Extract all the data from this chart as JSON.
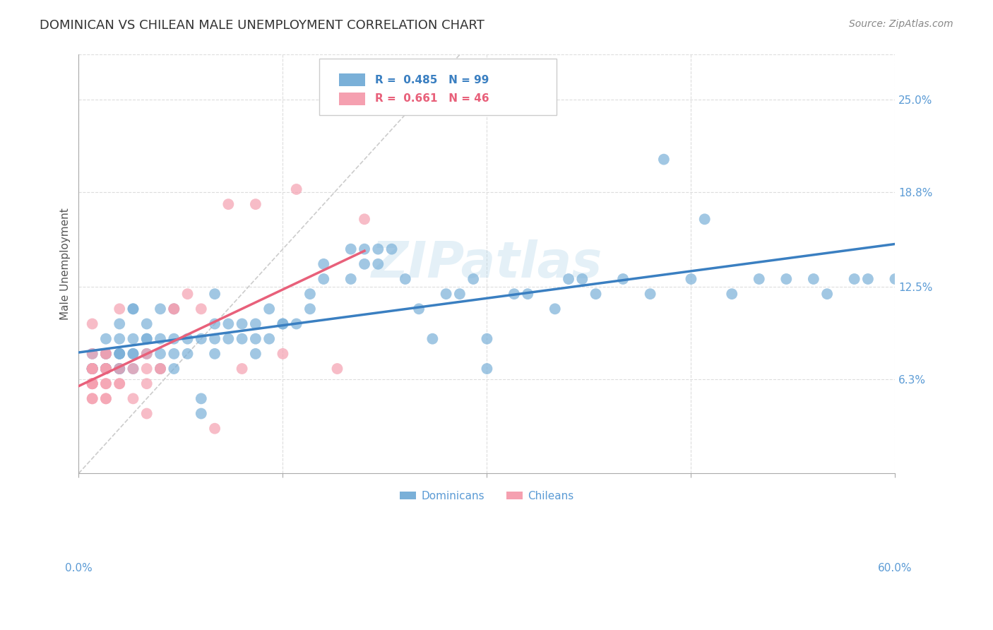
{
  "title": "DOMINICAN VS CHILEAN MALE UNEMPLOYMENT CORRELATION CHART",
  "source": "Source: ZipAtlas.com",
  "ylabel": "Male Unemployment",
  "ytick_labels": [
    "25.0%",
    "18.8%",
    "12.5%",
    "6.3%"
  ],
  "ytick_values": [
    0.25,
    0.188,
    0.125,
    0.063
  ],
  "xmin": 0.0,
  "xmax": 0.6,
  "ymin": 0.0,
  "ymax": 0.28,
  "watermark": "ZIPatlas",
  "legend_blue_r": "0.485",
  "legend_blue_n": "99",
  "legend_pink_r": "0.661",
  "legend_pink_n": "46",
  "legend_label_blue": "Dominicans",
  "legend_label_pink": "Chileans",
  "blue_color": "#7ab0d8",
  "pink_color": "#f5a0b0",
  "blue_line_color": "#3a7fc1",
  "pink_line_color": "#e8607a",
  "diagonal_color": "#cccccc",
  "title_color": "#333333",
  "tick_label_color": "#5b9bd5",
  "source_color": "#888888",
  "grid_color": "#dddddd",
  "blue_scatter_x": [
    0.01,
    0.01,
    0.01,
    0.01,
    0.01,
    0.01,
    0.02,
    0.02,
    0.02,
    0.02,
    0.02,
    0.02,
    0.02,
    0.02,
    0.03,
    0.03,
    0.03,
    0.03,
    0.03,
    0.03,
    0.03,
    0.03,
    0.04,
    0.04,
    0.04,
    0.04,
    0.04,
    0.04,
    0.05,
    0.05,
    0.05,
    0.05,
    0.06,
    0.06,
    0.06,
    0.06,
    0.07,
    0.07,
    0.07,
    0.07,
    0.08,
    0.08,
    0.09,
    0.09,
    0.09,
    0.1,
    0.1,
    0.1,
    0.1,
    0.11,
    0.11,
    0.12,
    0.12,
    0.13,
    0.13,
    0.13,
    0.14,
    0.14,
    0.15,
    0.15,
    0.16,
    0.17,
    0.17,
    0.18,
    0.18,
    0.2,
    0.2,
    0.21,
    0.21,
    0.22,
    0.22,
    0.23,
    0.24,
    0.25,
    0.26,
    0.27,
    0.28,
    0.29,
    0.3,
    0.3,
    0.32,
    0.33,
    0.35,
    0.36,
    0.37,
    0.38,
    0.4,
    0.42,
    0.43,
    0.45,
    0.46,
    0.48,
    0.5,
    0.52,
    0.54,
    0.55,
    0.57,
    0.58,
    0.6
  ],
  "blue_scatter_y": [
    0.07,
    0.07,
    0.07,
    0.07,
    0.07,
    0.08,
    0.07,
    0.07,
    0.07,
    0.07,
    0.07,
    0.08,
    0.08,
    0.09,
    0.07,
    0.07,
    0.07,
    0.08,
    0.08,
    0.08,
    0.09,
    0.1,
    0.07,
    0.08,
    0.08,
    0.09,
    0.11,
    0.11,
    0.08,
    0.09,
    0.09,
    0.1,
    0.07,
    0.08,
    0.09,
    0.11,
    0.07,
    0.08,
    0.09,
    0.11,
    0.08,
    0.09,
    0.04,
    0.05,
    0.09,
    0.08,
    0.09,
    0.1,
    0.12,
    0.09,
    0.1,
    0.09,
    0.1,
    0.08,
    0.09,
    0.1,
    0.09,
    0.11,
    0.1,
    0.1,
    0.1,
    0.11,
    0.12,
    0.13,
    0.14,
    0.13,
    0.15,
    0.14,
    0.15,
    0.14,
    0.15,
    0.15,
    0.13,
    0.11,
    0.09,
    0.12,
    0.12,
    0.13,
    0.07,
    0.09,
    0.12,
    0.12,
    0.11,
    0.13,
    0.13,
    0.12,
    0.13,
    0.12,
    0.21,
    0.13,
    0.17,
    0.12,
    0.13,
    0.13,
    0.13,
    0.12,
    0.13,
    0.13,
    0.13
  ],
  "pink_scatter_x": [
    0.01,
    0.01,
    0.01,
    0.01,
    0.01,
    0.01,
    0.01,
    0.01,
    0.01,
    0.01,
    0.01,
    0.01,
    0.01,
    0.02,
    0.02,
    0.02,
    0.02,
    0.02,
    0.02,
    0.02,
    0.02,
    0.02,
    0.03,
    0.03,
    0.03,
    0.03,
    0.04,
    0.04,
    0.05,
    0.05,
    0.05,
    0.05,
    0.06,
    0.06,
    0.07,
    0.07,
    0.08,
    0.09,
    0.1,
    0.11,
    0.12,
    0.13,
    0.15,
    0.16,
    0.19,
    0.21
  ],
  "pink_scatter_y": [
    0.05,
    0.05,
    0.06,
    0.06,
    0.06,
    0.06,
    0.06,
    0.07,
    0.07,
    0.07,
    0.07,
    0.08,
    0.1,
    0.05,
    0.05,
    0.06,
    0.06,
    0.07,
    0.07,
    0.07,
    0.08,
    0.08,
    0.06,
    0.06,
    0.07,
    0.11,
    0.05,
    0.07,
    0.04,
    0.06,
    0.07,
    0.08,
    0.07,
    0.07,
    0.11,
    0.11,
    0.12,
    0.11,
    0.03,
    0.18,
    0.07,
    0.18,
    0.08,
    0.19,
    0.07,
    0.17
  ]
}
